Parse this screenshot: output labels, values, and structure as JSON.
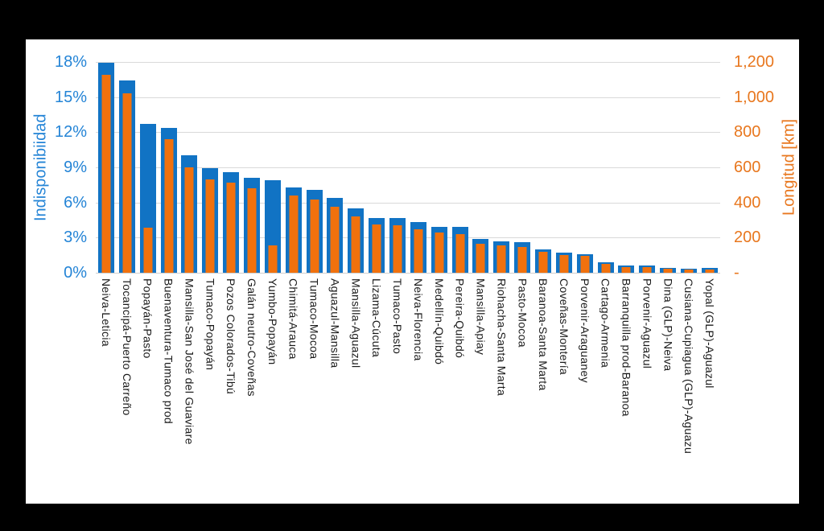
{
  "page": {
    "background": "#000000",
    "canvas_background": "#ffffff"
  },
  "chart_data": {
    "type": "bar",
    "title": "",
    "legend_position": "none",
    "grid": true,
    "gridline_color": "#d9d9d9",
    "categories": [
      "Neiva-Leticia",
      "Tocancipá-Puerto Carreño",
      "Popayán-Pasto",
      "Buenaventura-Tumaco prod",
      "Mansilla-San José del Guaviare",
      "Tumaco-Popayán",
      "Pozos Colorados-Tibú",
      "Galán neutro-Coveñas",
      "Yumbo-Popayán",
      "Chimitá-Arauca",
      "Tumaco-Mocoa",
      "Aguazul-Mansilla",
      "Mansilla-Aguazul",
      "Lizama-Cúcuta",
      "Tumaco-Pasto",
      "Neiva-Florencia",
      "Medellín-Quibdó",
      "Pereira-Quibdó",
      "Mansilla-Apiay",
      "Riohacha-Santa Marta",
      "Pasto-Mocoa",
      "Baranoa-Santa Marta",
      "Coveñas-Montería",
      "Porvenir-Araguaney",
      "Cartago-Armenia",
      "Barranquilla prod-Baranoa",
      "Porvenir-Aguazul",
      "Dina (GLP)-Neiva",
      "Cusiana-Cupiagua (GLP)-Aguazu",
      "Yopal (GLP)-Aguazul"
    ],
    "series": [
      {
        "name": "Indisponibiidad",
        "axis": "left",
        "unit": "%",
        "color": "#1173c4",
        "values": [
          17.9,
          16.4,
          12.7,
          12.4,
          10.0,
          8.9,
          8.6,
          8.1,
          7.9,
          7.3,
          7.1,
          6.4,
          5.5,
          4.7,
          4.7,
          4.3,
          3.9,
          3.9,
          2.9,
          2.7,
          2.6,
          2.0,
          1.7,
          1.6,
          0.9,
          0.6,
          0.6,
          0.4,
          0.35,
          0.4
        ]
      },
      {
        "name": "Longitud [km]",
        "axis": "right",
        "unit": "km",
        "color": "#f1710d",
        "values": [
          1125,
          1020,
          255,
          760,
          600,
          530,
          515,
          483,
          155,
          438,
          415,
          377,
          320,
          275,
          270,
          246,
          228,
          220,
          166,
          156,
          145,
          121,
          102,
          98,
          50,
          34,
          31,
          21,
          18,
          20
        ]
      }
    ],
    "left_axis": {
      "title": "Indisponibiidad",
      "ticks": [
        "18%",
        "15%",
        "12%",
        "9%",
        "6%",
        "3%",
        "0%"
      ],
      "range": [
        0,
        18
      ],
      "text_color": "#2484d6"
    },
    "right_axis": {
      "title": "Longitud [km]",
      "ticks": [
        "1,200",
        "1,000",
        "800",
        "600",
        "400",
        "200",
        "-"
      ],
      "range": [
        0,
        1200
      ],
      "text_color": "#e8771e"
    }
  }
}
